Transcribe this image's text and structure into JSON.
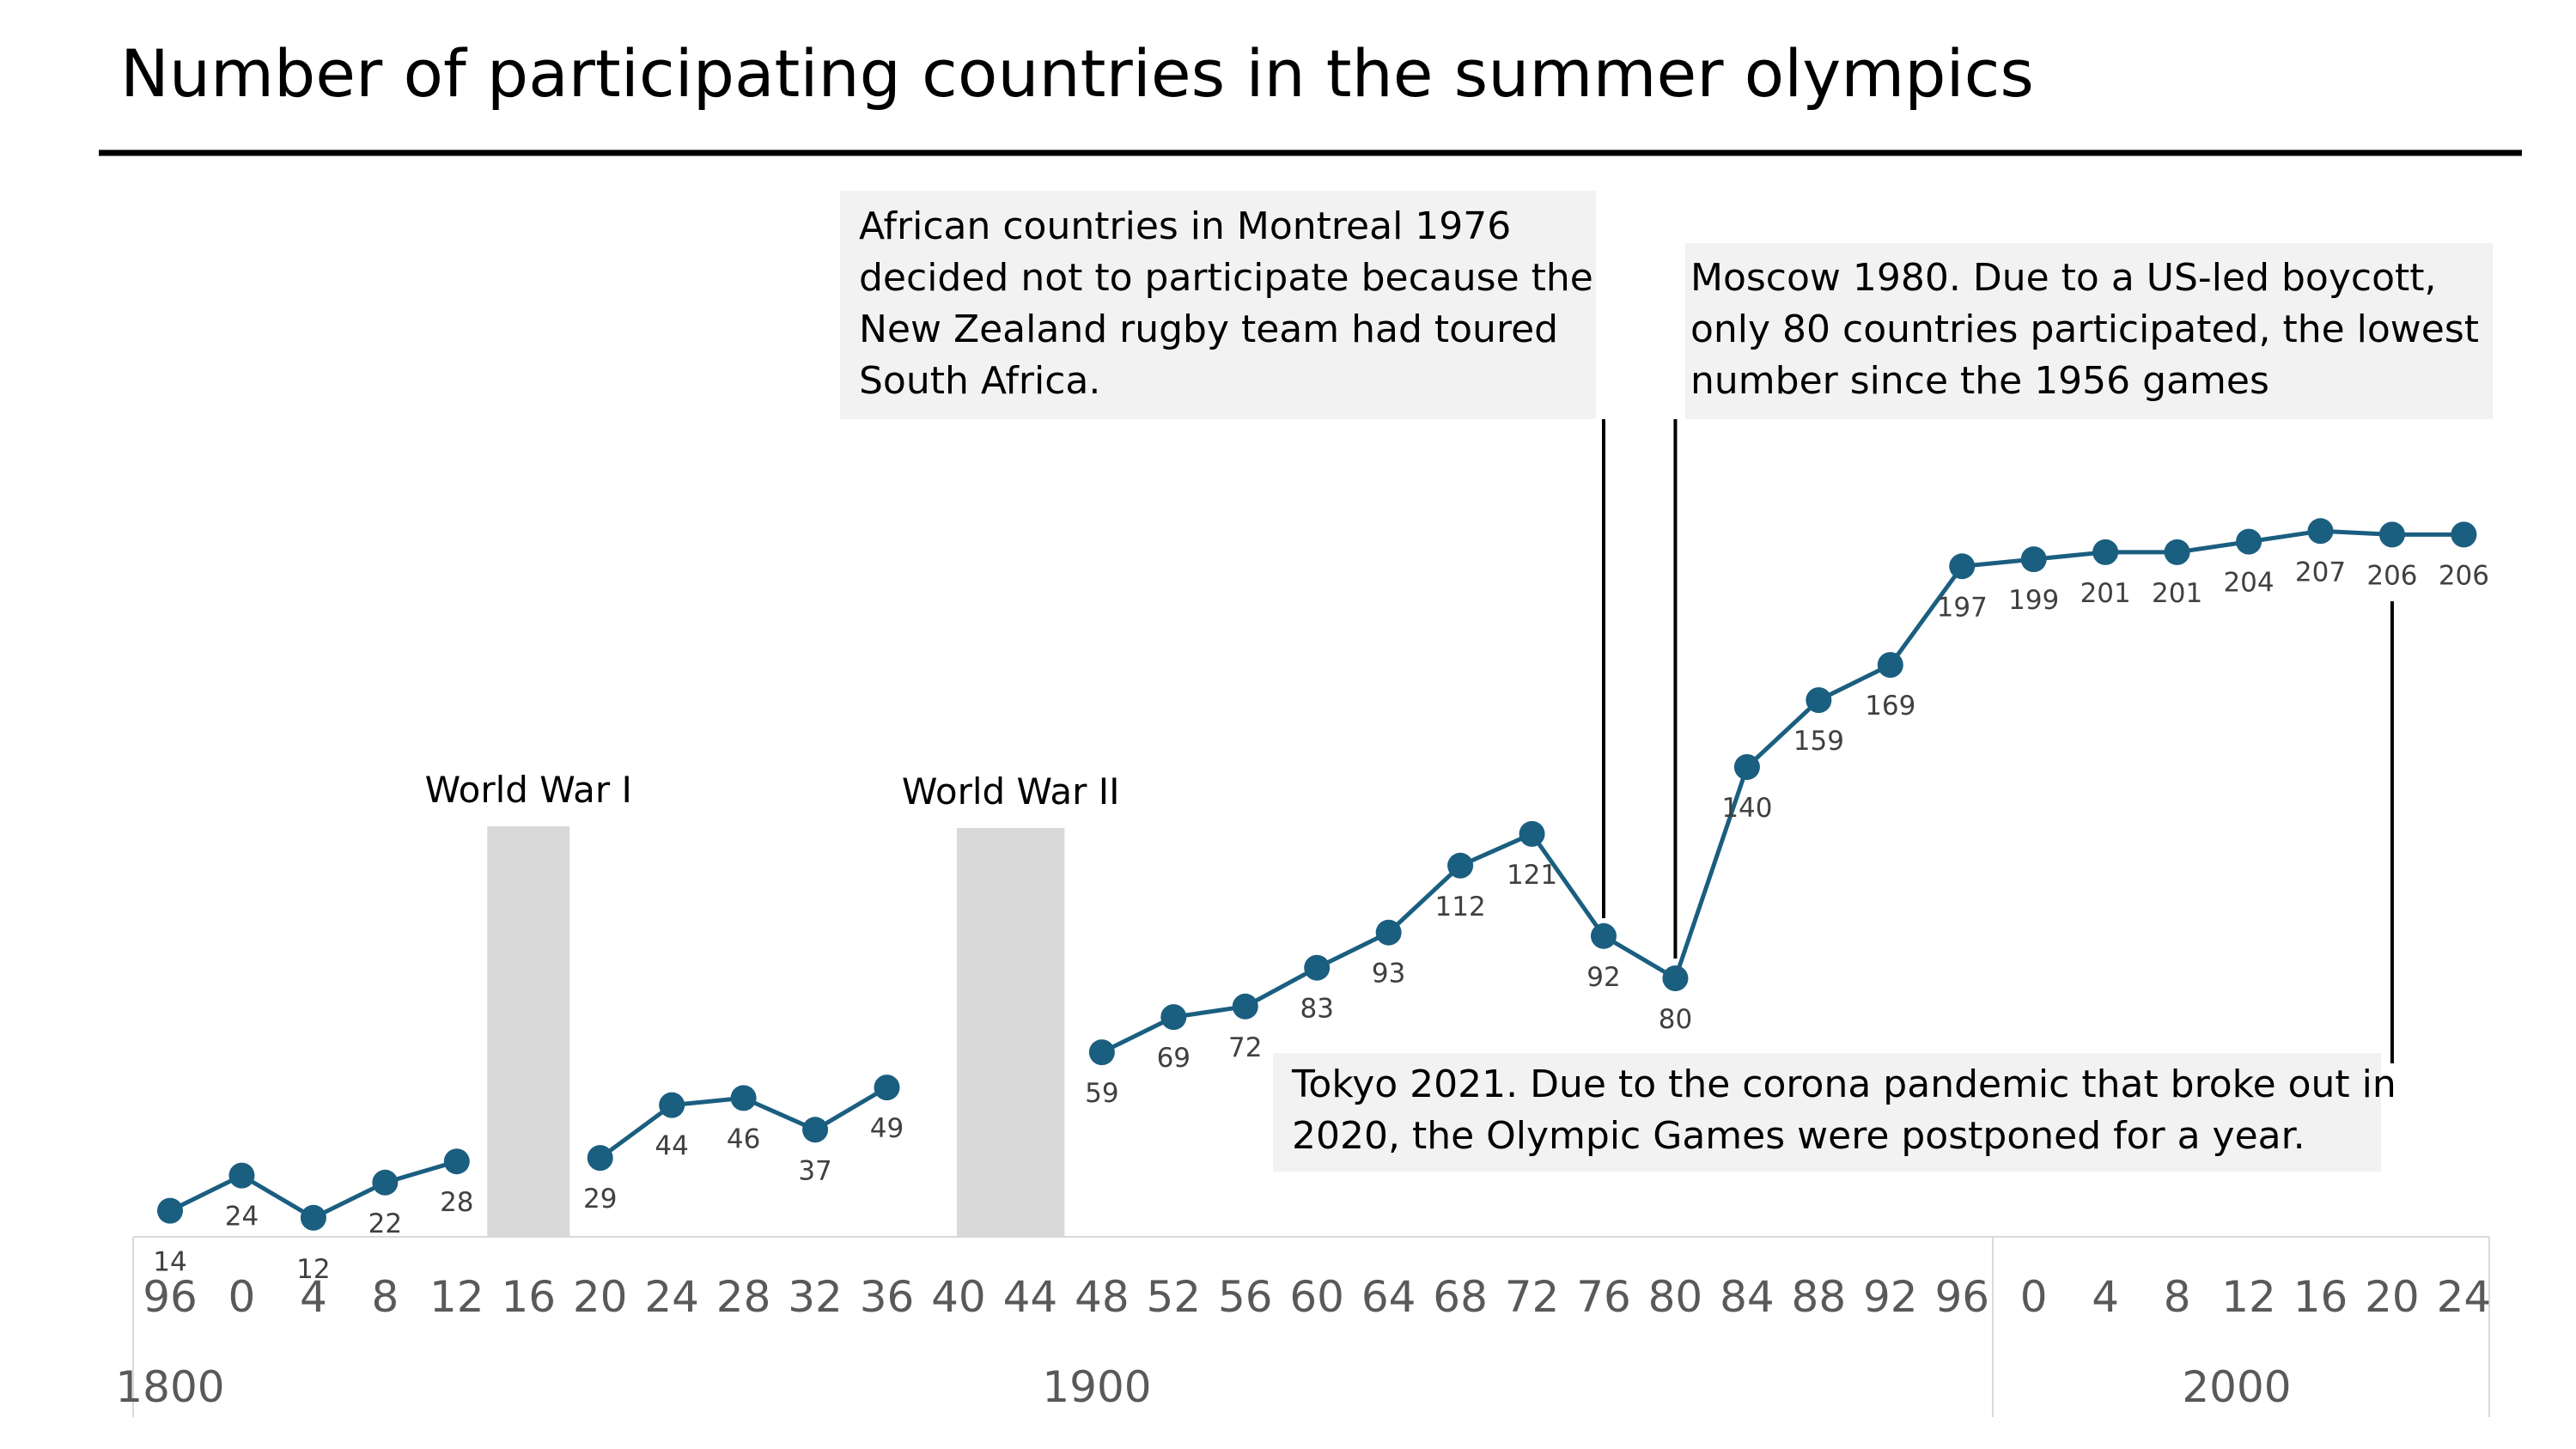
{
  "colors": {
    "series": "#1a5e80",
    "war_band": "#d9d9d9",
    "annotation_bg": "#f2f2f2",
    "axis_line": "#d9d9d9",
    "title_rule": "#000000"
  },
  "chart_data": {
    "type": "line",
    "title": "Number of participating countries in the summer olympics",
    "x": [
      1896,
      1900,
      1904,
      1908,
      1912,
      1920,
      1924,
      1928,
      1932,
      1936,
      1948,
      1952,
      1956,
      1960,
      1964,
      1968,
      1972,
      1976,
      1980,
      1984,
      1988,
      1992,
      1996,
      2000,
      2004,
      2008,
      2012,
      2016,
      2020,
      2024
    ],
    "series": [
      {
        "name": "Participating countries",
        "segments": [
          {
            "x": [
              1896,
              1900,
              1904,
              1908,
              1912
            ],
            "values": [
              14,
              24,
              12,
              22,
              28
            ]
          },
          {
            "x": [
              1920,
              1924,
              1928,
              1932,
              1936
            ],
            "values": [
              29,
              44,
              46,
              37,
              49
            ]
          },
          {
            "x": [
              1948,
              1952,
              1956,
              1960,
              1964,
              1968,
              1972,
              1976,
              1980,
              1984,
              1988,
              1992,
              1996,
              2000,
              2004,
              2008,
              2012,
              2016,
              2020,
              2024
            ],
            "values": [
              59,
              69,
              72,
              83,
              93,
              112,
              121,
              92,
              80,
              140,
              159,
              169,
              197,
              199,
              201,
              201,
              204,
              207,
              206,
              206
            ]
          }
        ],
        "label_position": {
          "1896": "below",
          "1904": "below"
        }
      }
    ],
    "ylim": [
      0,
      260
    ],
    "x_ticks": [
      {
        "year": 1896,
        "label": "96"
      },
      {
        "year": 1900,
        "label": "0"
      },
      {
        "year": 1904,
        "label": "4"
      },
      {
        "year": 1908,
        "label": "8"
      },
      {
        "year": 1912,
        "label": "12"
      },
      {
        "year": 1916,
        "label": "16"
      },
      {
        "year": 1920,
        "label": "20"
      },
      {
        "year": 1924,
        "label": "24"
      },
      {
        "year": 1928,
        "label": "28"
      },
      {
        "year": 1932,
        "label": "32"
      },
      {
        "year": 1936,
        "label": "36"
      },
      {
        "year": 1940,
        "label": "40"
      },
      {
        "year": 1944,
        "label": "44"
      },
      {
        "year": 1948,
        "label": "48"
      },
      {
        "year": 1952,
        "label": "52"
      },
      {
        "year": 1956,
        "label": "56"
      },
      {
        "year": 1960,
        "label": "60"
      },
      {
        "year": 1964,
        "label": "64"
      },
      {
        "year": 1968,
        "label": "68"
      },
      {
        "year": 1972,
        "label": "72"
      },
      {
        "year": 1976,
        "label": "76"
      },
      {
        "year": 1980,
        "label": "80"
      },
      {
        "year": 1984,
        "label": "84"
      },
      {
        "year": 1988,
        "label": "88"
      },
      {
        "year": 1992,
        "label": "92"
      },
      {
        "year": 1996,
        "label": "96"
      },
      {
        "year": 2000,
        "label": "0"
      },
      {
        "year": 2004,
        "label": "4"
      },
      {
        "year": 2008,
        "label": "8"
      },
      {
        "year": 2012,
        "label": "12"
      },
      {
        "year": 2016,
        "label": "16"
      },
      {
        "year": 2020,
        "label": "20"
      },
      {
        "year": 2024,
        "label": "24"
      }
    ],
    "centuries": [
      {
        "label": "1800",
        "from": 1896,
        "to": 1896
      },
      {
        "label": "1900",
        "from": 1900,
        "to": 1996
      },
      {
        "label": "2000",
        "from": 2000,
        "to": 2024
      }
    ],
    "war_bands": [
      {
        "label": "World War I",
        "center_year": 1916
      },
      {
        "label": "World War II",
        "from_year": 1940,
        "to_year": 1944
      }
    ],
    "annotations": [
      {
        "id": "montreal",
        "year": 1976,
        "lines": [
          "African countries in Montreal 1976",
          "decided not to participate because the",
          "New Zealand rugby team had toured",
          "South Africa."
        ]
      },
      {
        "id": "moscow",
        "year": 1980,
        "lines": [
          "Moscow 1980. Due to a US-led boycott,",
          "only 80 countries participated, the lowest",
          "number since the 1956 games"
        ]
      },
      {
        "id": "tokyo",
        "year": 2020,
        "lines": [
          "Tokyo 2021. Due to the corona pandemic that broke out in",
          "2020, the Olympic Games were postponed for a year."
        ]
      }
    ]
  }
}
